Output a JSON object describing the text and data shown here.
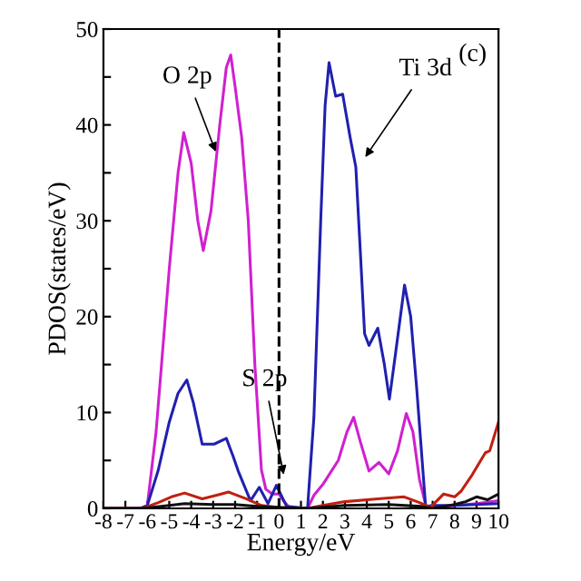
{
  "chart_data": {
    "type": "line",
    "xlabel": "Energy/eV",
    "ylabel": "PDOS(states/eV)",
    "xlim": [
      -8,
      10
    ],
    "ylim": [
      0,
      50
    ],
    "xticks": [
      -8,
      -7,
      -6,
      -5,
      -4,
      -3,
      -2,
      -1,
      0,
      1,
      2,
      3,
      4,
      5,
      6,
      7,
      8,
      9,
      10
    ],
    "yticks": [
      0,
      {
        "value": 5,
        "label": null
      },
      10,
      {
        "value": 15,
        "label": null
      },
      20,
      {
        "value": 25,
        "label": null
      },
      30,
      {
        "value": 35,
        "label": null
      },
      40,
      {
        "value": 45,
        "label": null
      },
      50
    ],
    "grid": false,
    "legend": false,
    "marker": "none",
    "line_style": "solid",
    "ref_lines": [
      {
        "axis": "x",
        "value": 0,
        "color": "#000000",
        "line_style": "dashed"
      }
    ],
    "annotations": [
      {
        "text": "O 2p",
        "x": -2.8,
        "y": 36.7
      },
      {
        "text": "Ti 3d",
        "x": 3.8,
        "y": 36.2
      },
      {
        "text": "S 2p",
        "x": 0.26,
        "y": 3
      },
      "(c)"
    ],
    "series": [
      {
        "color": "#d020d0",
        "x": [
          -8,
          -6.3,
          -6.0,
          -5.6,
          -5.0,
          -4.6,
          -4.34,
          -4.0,
          -3.7,
          -3.45,
          -3.1,
          -2.7,
          -2.4,
          -2.2,
          -2.0,
          -1.7,
          -1.4,
          -1.1,
          -0.8,
          -0.6,
          -0.3,
          0.0,
          0.2,
          0.5,
          1.3,
          1.6,
          2.0,
          2.7,
          3.1,
          3.4,
          3.7,
          4.1,
          4.55,
          5.0,
          5.4,
          5.8,
          6.1,
          6.4,
          6.7,
          7.0,
          8.0,
          9.0,
          10.0
        ],
        "values": [
          0,
          0,
          0.3,
          8,
          25,
          35,
          39.2,
          36,
          30,
          26.9,
          31,
          40,
          46,
          47.3,
          44,
          38.7,
          30,
          15,
          4,
          2,
          1.5,
          1.5,
          0.8,
          0,
          0,
          1.4,
          2.5,
          5,
          8,
          9.5,
          7,
          3.9,
          4.8,
          3.6,
          6,
          9.9,
          8,
          3,
          0.2,
          0,
          0.3,
          0.5,
          0.8
        ]
      },
      {
        "color": "#2020b0",
        "x": [
          -8,
          -6.3,
          -6.0,
          -5.5,
          -5.0,
          -4.6,
          -4.2,
          -3.9,
          -3.5,
          -2.96,
          -2.4,
          -2.1,
          -1.86,
          -1.3,
          -0.9,
          -0.5,
          -0.12,
          0.35,
          1.3,
          1.59,
          1.9,
          2.1,
          2.28,
          2.58,
          2.9,
          3.24,
          3.5,
          3.7,
          3.9,
          4.1,
          4.5,
          4.8,
          5.03,
          5.3,
          5.72,
          6.0,
          6.27,
          6.68,
          7.0,
          8.0,
          9.0,
          10.0
        ],
        "values": [
          0,
          0,
          0.3,
          4,
          9,
          12,
          13.4,
          11,
          6.7,
          6.7,
          7.3,
          5.5,
          3.9,
          0.8,
          2.2,
          0.5,
          2.4,
          0.2,
          0,
          9.5,
          30,
          42,
          46.5,
          43.0,
          43.2,
          38.7,
          35.6,
          27,
          18.2,
          17,
          18.8,
          15,
          11.4,
          16,
          23.3,
          20,
          12.6,
          0.2,
          0.3,
          0.3,
          0.4,
          0.5
        ]
      },
      {
        "color": "#c02010",
        "x": [
          -8,
          -6.2,
          -5.5,
          -4.9,
          -4.3,
          -3.5,
          -2.8,
          -2.3,
          -1.5,
          -0.8,
          0.0,
          1.3,
          2.0,
          3.0,
          4.5,
          5.7,
          6.4,
          6.9,
          7.5,
          8.0,
          8.3,
          8.8,
          9.4,
          9.6,
          10.0
        ],
        "values": [
          0,
          0,
          0.6,
          1.2,
          1.6,
          1.0,
          1.4,
          1.7,
          1.0,
          0.3,
          0.1,
          0,
          0.3,
          0.7,
          1.0,
          1.2,
          0.6,
          0.1,
          1.5,
          1.2,
          1.8,
          3.5,
          5.8,
          6.0,
          9.0
        ]
      },
      {
        "color": "#101010",
        "x": [
          -8,
          -6.2,
          -5.0,
          -4.3,
          -3.0,
          -2.0,
          -1.0,
          0.0,
          1.3,
          3.0,
          5.0,
          6.5,
          7.0,
          8.0,
          8.5,
          9.0,
          9.5,
          10.0
        ],
        "values": [
          0,
          0,
          0.3,
          0.5,
          0.4,
          0.4,
          0.2,
          0.1,
          0,
          0.3,
          0.4,
          0.2,
          0,
          0.4,
          0.7,
          1.2,
          0.9,
          1.5
        ]
      }
    ]
  }
}
